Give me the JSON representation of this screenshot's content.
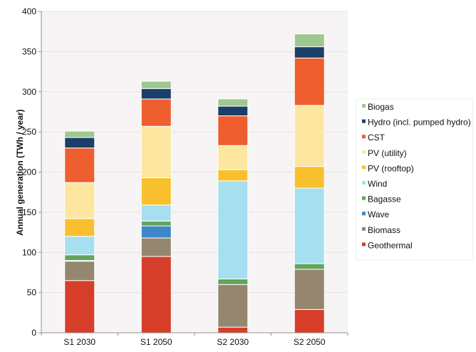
{
  "chart_data": {
    "type": "bar",
    "stacked": true,
    "title": "",
    "xlabel": "",
    "ylabel": "Annual generation (TWh / year)",
    "ylim": [
      0,
      400
    ],
    "yticks": [
      0,
      50,
      100,
      150,
      200,
      250,
      300,
      350,
      400
    ],
    "grid": true,
    "legend_placement": "right",
    "categories": [
      "S1 2030",
      "S1 2050",
      "S2 2030",
      "S2 2050"
    ],
    "series": [
      {
        "name": "Geothermal",
        "color": "#d63e2a",
        "values": [
          65,
          95,
          7,
          29
        ]
      },
      {
        "name": "Biomass",
        "color": "#958670",
        "values": [
          24,
          23,
          53,
          50
        ]
      },
      {
        "name": "Wave",
        "color": "#3f88c8",
        "values": [
          1,
          15,
          0,
          0
        ]
      },
      {
        "name": "Bagasse",
        "color": "#63a55a",
        "values": [
          7,
          6,
          7,
          7
        ]
      },
      {
        "name": "Wind",
        "color": "#a6dff0",
        "values": [
          23,
          20,
          122,
          94
        ]
      },
      {
        "name": "PV (rooftop)",
        "color": "#f9c02e",
        "values": [
          22,
          34,
          14,
          27
        ]
      },
      {
        "name": "PV (utility)",
        "color": "#fde6a0",
        "values": [
          45,
          64,
          30,
          76
        ]
      },
      {
        "name": "CST",
        "color": "#ee5e2e",
        "values": [
          43,
          34,
          37,
          59
        ]
      },
      {
        "name": "Hydro (incl. pumped hydro)",
        "color": "#1a3f6a",
        "values": [
          13,
          13,
          12,
          14
        ]
      },
      {
        "name": "Biogas",
        "color": "#9ec88f",
        "values": [
          8,
          9,
          9,
          16
        ]
      }
    ],
    "legend_order": [
      "Biogas",
      "Hydro (incl. pumped hydro)",
      "CST",
      "PV (utility)",
      "PV (rooftop)",
      "Wind",
      "Bagasse",
      "Wave",
      "Biomass",
      "Geothermal"
    ]
  }
}
